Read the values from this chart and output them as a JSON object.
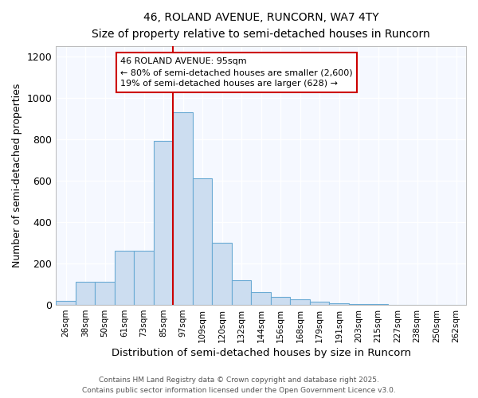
{
  "title1": "46, ROLAND AVENUE, RUNCORN, WA7 4TY",
  "title2": "Size of property relative to semi-detached houses in Runcorn",
  "xlabel": "Distribution of semi-detached houses by size in Runcorn",
  "ylabel": "Number of semi-detached properties",
  "categories": [
    "26sqm",
    "38sqm",
    "50sqm",
    "61sqm",
    "73sqm",
    "85sqm",
    "97sqm",
    "109sqm",
    "120sqm",
    "132sqm",
    "144sqm",
    "156sqm",
    "168sqm",
    "179sqm",
    "191sqm",
    "203sqm",
    "215sqm",
    "227sqm",
    "238sqm",
    "250sqm",
    "262sqm"
  ],
  "values": [
    18,
    110,
    110,
    260,
    260,
    790,
    930,
    610,
    300,
    120,
    60,
    38,
    28,
    15,
    8,
    5,
    3,
    2,
    2,
    2,
    2
  ],
  "bar_color": "#ccddf0",
  "bar_edge_color": "#6aaad4",
  "vline_x_index": 6,
  "vline_color": "#cc0000",
  "annotation_line1": "46 ROLAND AVENUE: 95sqm",
  "annotation_line2": "← 80% of semi-detached houses are smaller (2,600)",
  "annotation_line3": "19% of semi-detached houses are larger (628) →",
  "annotation_box_color": "#ffffff",
  "annotation_box_edge": "#cc0000",
  "footer1": "Contains HM Land Registry data © Crown copyright and database right 2025.",
  "footer2": "Contains public sector information licensed under the Open Government Licence v3.0.",
  "bg_color": "#ffffff",
  "plot_bg_color": "#f5f8ff",
  "ylim": [
    0,
    1250
  ],
  "yticks": [
    0,
    200,
    400,
    600,
    800,
    1000,
    1200
  ]
}
